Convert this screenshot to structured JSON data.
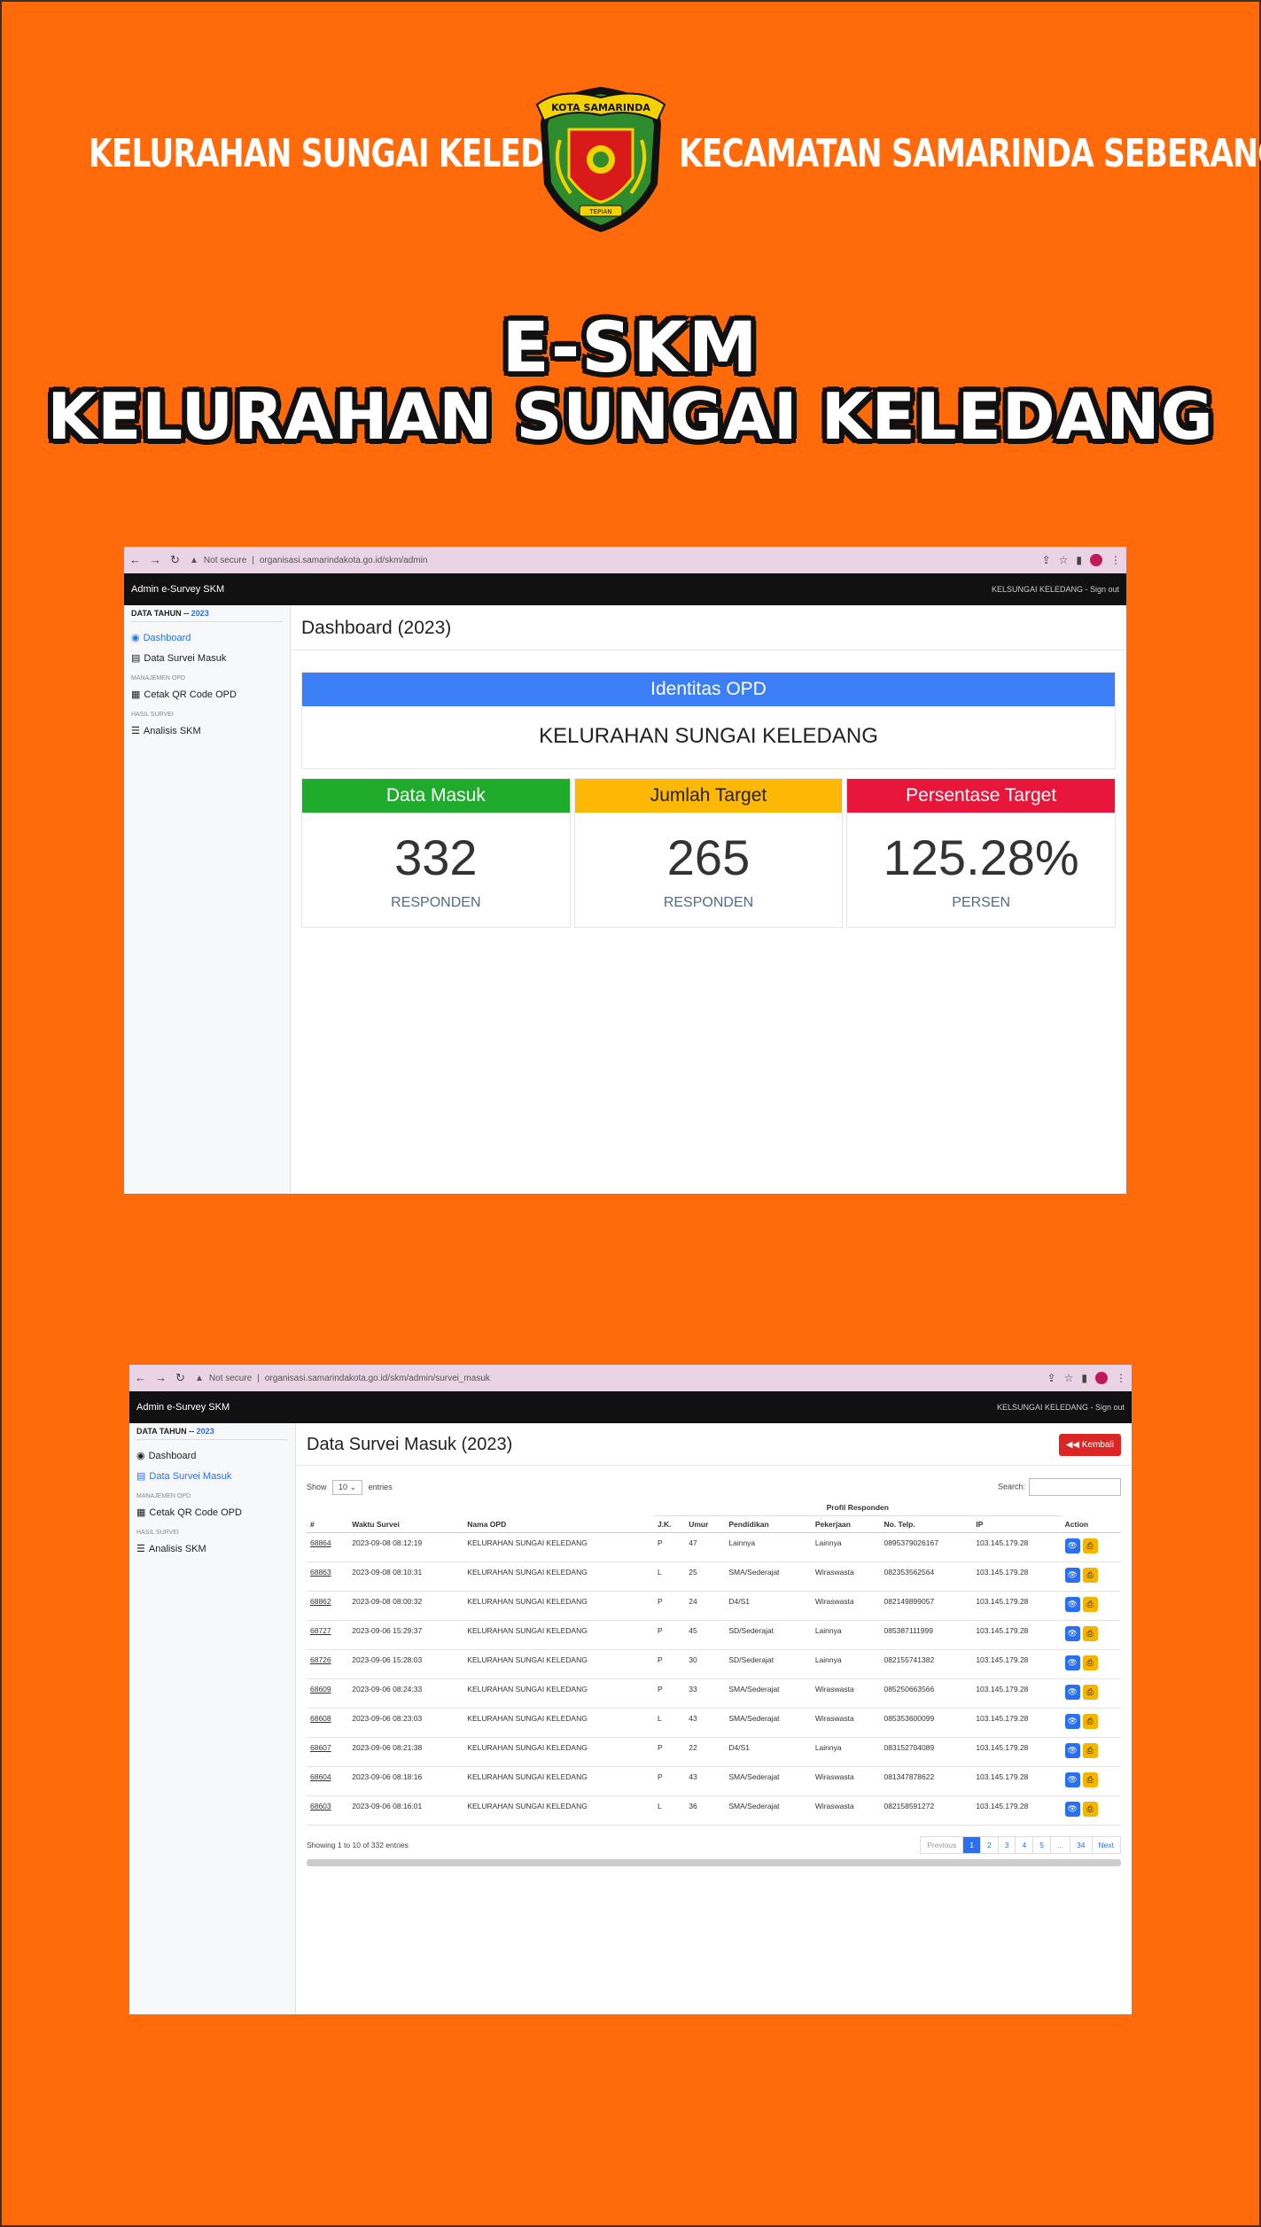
{
  "banner": {
    "left_text": "KELURAHAN SUNGAI KELEDANG",
    "right_text": "KECAMATAN SAMARINDA SEBERANG",
    "emblem_text_top": "KOTA SAMARINDA",
    "emblem_text_bottom": "TEPIAN",
    "title_line1": "E-SKM",
    "title_line2": "KELURAHAN SUNGAI KELEDANG"
  },
  "colors": {
    "background": "#ff6a0b",
    "blue": "#3b7ef5",
    "green": "#1fab2c",
    "yellow": "#fdb805",
    "red": "#e8163a"
  },
  "dashboard": {
    "security": "Not secure",
    "url": "organisasi.samarindakota.go.id/skm/admin",
    "app_name": "Admin e-Survey SKM",
    "user": "KELSUNGAI KELEDANG - Sign out",
    "sidebar": {
      "year_label": "DATA TAHUN --",
      "year": "2023",
      "items": [
        {
          "label": "Dashboard",
          "icon": "dashboard-icon"
        },
        {
          "label": "Data Survei Masuk",
          "icon": "list-icon"
        }
      ],
      "head_manajemen": "MANAJEMEN OPD",
      "qr_label": "Cetak QR Code OPD",
      "head_hasil": "HASIL SURVEI",
      "analisis_label": "Analisis SKM"
    },
    "page_title": "Dashboard (2023)",
    "identitas_label": "Identitas OPD",
    "identitas_value": "KELURAHAN SUNGAI KELEDANG",
    "cards": [
      {
        "label": "Data Masuk",
        "value": "332",
        "unit": "RESPONDEN",
        "color": "#1fab2c"
      },
      {
        "label": "Jumlah Target",
        "value": "265",
        "unit": "RESPONDEN",
        "color": "#fdb805"
      },
      {
        "label": "Persentase Target",
        "value": "125.28%",
        "unit": "PERSEN",
        "color": "#e8163a"
      }
    ]
  },
  "survei": {
    "security": "Not secure",
    "url": "organisasi.samarindakota.go.id/skm/admin/survei_masuk",
    "app_name": "Admin e-Survey SKM",
    "user": "KELSUNGAI KELEDANG - Sign out",
    "sidebar": {
      "year_label": "DATA TAHUN --",
      "year": "2023",
      "dashboard_label": "Dashboard",
      "data_label": "Data Survei Masuk",
      "head_manajemen": "MANAJEMEN OPD",
      "qr_label": "Cetak QR Code OPD",
      "head_hasil": "HASIL SURVEI",
      "analisis_label": "Analisis SKM"
    },
    "page_title": "Data Survei Masuk (2023)",
    "back_label": "Kembali",
    "show_label": "Show",
    "entries_value": "10",
    "entries_label": "entries",
    "search_label": "Search:",
    "group_header": "Profil Responden",
    "columns": [
      "#",
      "Waktu Survei",
      "Nama OPD",
      "J.K.",
      "Umur",
      "Pendidikan",
      "Pekerjaan",
      "No. Telp.",
      "IP",
      "Action"
    ],
    "rows": [
      [
        "68864",
        "2023-09-08 08:12:19",
        "KELURAHAN SUNGAI KELEDANG",
        "P",
        "47",
        "Lainnya",
        "Lainnya",
        "0895379026167",
        "103.145.179.28"
      ],
      [
        "68863",
        "2023-09-08 08:10:31",
        "KELURAHAN SUNGAI KELEDANG",
        "L",
        "25",
        "SMA/Sederajat",
        "Wiraswasta",
        "082353562564",
        "103.145.179.28"
      ],
      [
        "68862",
        "2023-09-08 08:00:32",
        "KELURAHAN SUNGAI KELEDANG",
        "P",
        "24",
        "D4/S1",
        "Wiraswasta",
        "082149899057",
        "103.145.179.28"
      ],
      [
        "68727",
        "2023-09-06 15:29:37",
        "KELURAHAN SUNGAI KELEDANG",
        "P",
        "45",
        "SD/Sederajat",
        "Lainnya",
        "085387111999",
        "103.145.179.28"
      ],
      [
        "68726",
        "2023-09-06 15:28:03",
        "KELURAHAN SUNGAI KELEDANG",
        "P",
        "30",
        "SD/Sederajat",
        "Lainnya",
        "082155741382",
        "103.145.179.28"
      ],
      [
        "68609",
        "2023-09-06 08:24:33",
        "KELURAHAN SUNGAI KELEDANG",
        "P",
        "33",
        "SMA/Sederajat",
        "Wiraswasta",
        "085250663566",
        "103.145.179.28"
      ],
      [
        "68608",
        "2023-09-06 08:23:03",
        "KELURAHAN SUNGAI KELEDANG",
        "L",
        "43",
        "SMA/Sederajat",
        "Wiraswasta",
        "085353600099",
        "103.145.179.28"
      ],
      [
        "68607",
        "2023-09-06 08:21:38",
        "KELURAHAN SUNGAI KELEDANG",
        "P",
        "22",
        "D4/S1",
        "Lainnya",
        "083152704089",
        "103.145.179.28"
      ],
      [
        "68604",
        "2023-09-06 08:18:16",
        "KELURAHAN SUNGAI KELEDANG",
        "P",
        "43",
        "SMA/Sederajat",
        "Wiraswasta",
        "081347878622",
        "103.145.179.28"
      ],
      [
        "68603",
        "2023-09-06 08:16:01",
        "KELURAHAN SUNGAI KELEDANG",
        "L",
        "36",
        "SMA/Sederajat",
        "Wiraswasta",
        "082158591272",
        "103.145.179.28"
      ]
    ],
    "footer_info": "Showing 1 to 10 of 332 entries",
    "pager": [
      "Previous",
      "1",
      "2",
      "3",
      "4",
      "5",
      "...",
      "34",
      "Next"
    ]
  }
}
